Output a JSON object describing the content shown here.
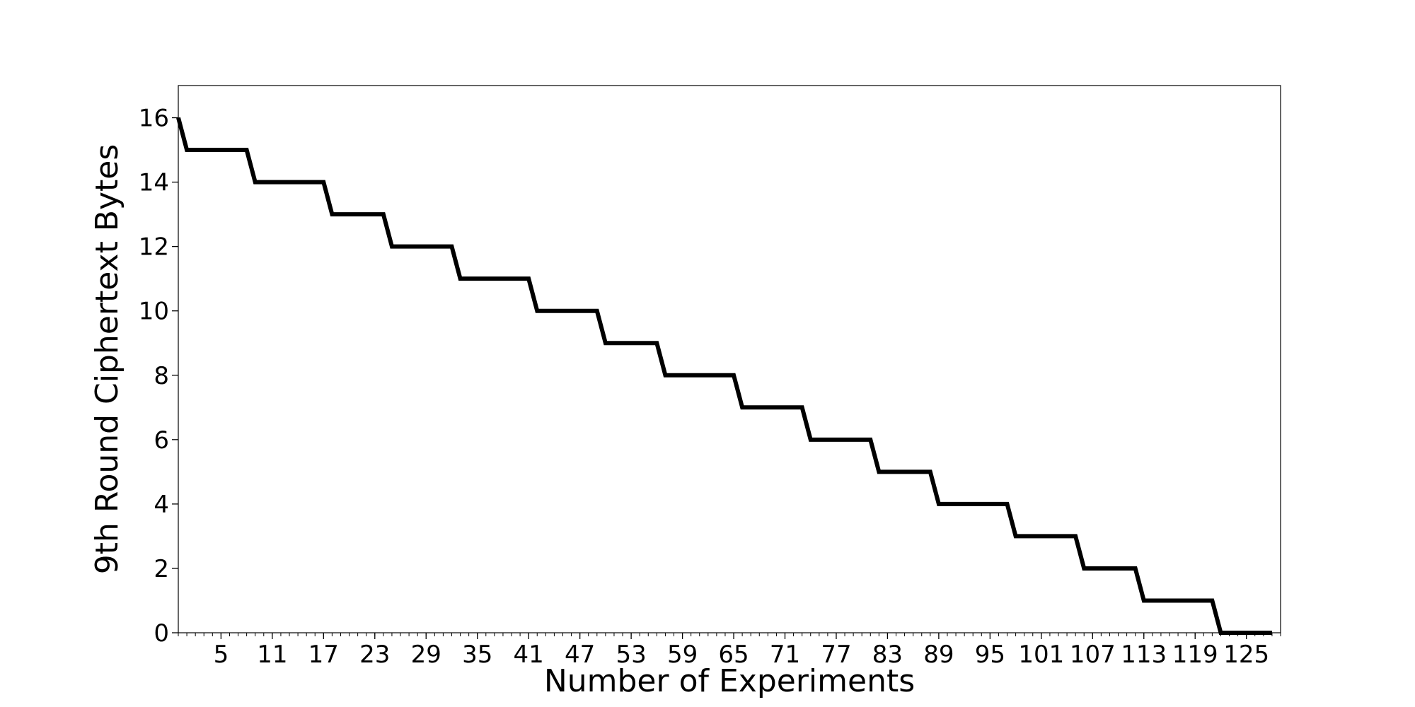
{
  "chart_data": {
    "type": "line",
    "title": "",
    "xlabel": "Number of Experiments",
    "ylabel": "9th Round Ciphertext Bytes",
    "xlim": [
      0,
      129
    ],
    "ylim": [
      0,
      17
    ],
    "x_ticks": [
      5,
      11,
      17,
      23,
      29,
      35,
      41,
      47,
      53,
      59,
      65,
      71,
      77,
      83,
      89,
      95,
      101,
      107,
      113,
      119,
      125
    ],
    "y_ticks": [
      0,
      2,
      4,
      6,
      8,
      10,
      12,
      14,
      16
    ],
    "grid": false,
    "legend": "none",
    "series": [
      {
        "color": "#000000",
        "x": [
          0,
          1,
          8,
          9,
          17,
          18,
          24,
          25,
          32,
          33,
          41,
          42,
          49,
          50,
          56,
          57,
          65,
          66,
          73,
          74,
          81,
          82,
          88,
          89,
          97,
          98,
          105,
          106,
          112,
          113,
          121,
          122,
          128
        ],
        "y": [
          16,
          15,
          15,
          14,
          14,
          13,
          13,
          12,
          12,
          11,
          11,
          10,
          10,
          9,
          9,
          8,
          8,
          7,
          7,
          6,
          6,
          5,
          5,
          4,
          4,
          3,
          3,
          2,
          2,
          1,
          1,
          0,
          0
        ]
      }
    ]
  }
}
